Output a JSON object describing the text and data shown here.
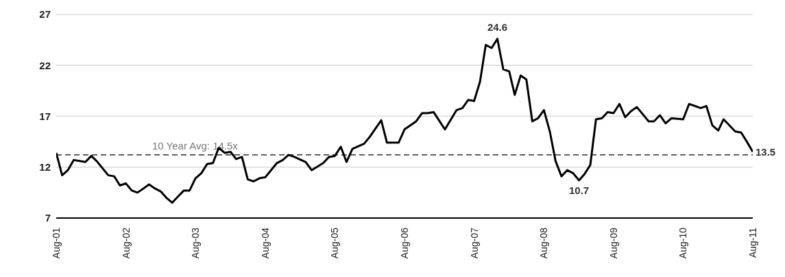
{
  "chart_data": {
    "type": "line",
    "x": [
      "2001-08",
      "2001-09",
      "2001-10",
      "2001-11",
      "2001-12",
      "2002-01",
      "2002-02",
      "2002-03",
      "2002-05",
      "2002-06",
      "2002-07",
      "2002-08",
      "2002-09",
      "2002-10",
      "2002-11",
      "2002-12",
      "2003-01",
      "2003-02",
      "2003-03",
      "2003-04",
      "2003-05",
      "2003-06",
      "2003-07",
      "2003-08",
      "2003-09",
      "2003-10",
      "2003-11",
      "2003-12",
      "2004-01",
      "2004-02",
      "2004-03",
      "2004-04",
      "2004-05",
      "2004-06",
      "2004-07",
      "2004-08",
      "2004-10",
      "2004-11",
      "2004-12",
      "2005-01",
      "2005-03",
      "2005-04",
      "2005-06",
      "2005-07",
      "2005-08",
      "2005-09",
      "2005-10",
      "2005-11",
      "2006-01",
      "2006-02",
      "2006-04",
      "2006-05",
      "2006-07",
      "2006-08",
      "2006-10",
      "2006-11",
      "2006-12",
      "2007-01",
      "2007-03",
      "2007-05",
      "2007-06",
      "2007-07",
      "2007-08",
      "2007-09",
      "2007-10",
      "2007-11",
      "2007-12",
      "2008-01",
      "2008-02",
      "2008-03",
      "2008-04",
      "2008-05",
      "2008-06",
      "2008-07",
      "2008-08",
      "2008-09",
      "2008-10",
      "2008-11",
      "2008-12",
      "2009-01",
      "2009-02",
      "2009-03",
      "2009-04",
      "2009-05",
      "2009-06",
      "2009-07",
      "2009-08",
      "2009-09",
      "2009-10",
      "2009-11",
      "2009-12",
      "2010-02",
      "2010-03",
      "2010-04",
      "2010-05",
      "2010-06",
      "2010-08",
      "2010-09",
      "2010-11",
      "2010-12",
      "2011-01",
      "2011-02",
      "2011-03",
      "2011-05",
      "2011-06",
      "2011-07",
      "2011-08"
    ],
    "series": [
      {
        "color": "#000000",
        "values": [
          13.4,
          11.2,
          11.7,
          12.7,
          12.6,
          12.5,
          13.1,
          12.6,
          11.2,
          11.1,
          10.2,
          10.4,
          9.7,
          9.5,
          9.9,
          10.3,
          9.9,
          9.6,
          9.0,
          8.5,
          9.1,
          9.7,
          9.7,
          10.9,
          11.4,
          12.3,
          12.4,
          13.9,
          13.4,
          13.5,
          12.8,
          13.0,
          10.8,
          10.6,
          10.9,
          11.0,
          12.4,
          12.7,
          13.2,
          13.0,
          12.5,
          11.7,
          12.4,
          13.0,
          13.1,
          14.0,
          12.5,
          13.8,
          14.3,
          15.0,
          16.6,
          14.4,
          14.4,
          15.7,
          16.5,
          17.3,
          17.3,
          17.4,
          15.7,
          17.6,
          17.8,
          18.6,
          18.5,
          20.4,
          24.0,
          23.7,
          24.6,
          21.6,
          21.4,
          19.1,
          21.0,
          20.6,
          16.5,
          16.8,
          17.6,
          15.5,
          12.6,
          11.1,
          11.7,
          11.4,
          10.7,
          11.3,
          12.2,
          16.7,
          16.8,
          17.4,
          17.3,
          18.2,
          16.9,
          17.5,
          17.9,
          16.5,
          16.5,
          17.1,
          16.3,
          16.8,
          16.7,
          18.2,
          17.8,
          18.0,
          16.1,
          15.6,
          16.7,
          15.5,
          15.4,
          14.5,
          13.5
        ],
        "value_labels": [
          null,
          null,
          null,
          null,
          null,
          null,
          null,
          null,
          null,
          null,
          null,
          null,
          null,
          null,
          null,
          null,
          null,
          null,
          null,
          null,
          null,
          null,
          null,
          null,
          null,
          null,
          null,
          null,
          null,
          null,
          null,
          null,
          null,
          null,
          null,
          null,
          null,
          null,
          null,
          null,
          null,
          null,
          null,
          null,
          null,
          null,
          null,
          null,
          null,
          null,
          null,
          null,
          null,
          null,
          null,
          null,
          null,
          null,
          null,
          null,
          null,
          null,
          null,
          null,
          null,
          null,
          "24.6",
          null,
          null,
          null,
          null,
          null,
          null,
          null,
          null,
          null,
          null,
          null,
          null,
          null,
          "10.7",
          null,
          null,
          null,
          null,
          null,
          null,
          null,
          null,
          null,
          null,
          null,
          null,
          null,
          null,
          null,
          null,
          null,
          null,
          null,
          null,
          null,
          null,
          null,
          null,
          null,
          "13.5"
        ]
      }
    ],
    "xlim": [
      "2001-08",
      "2011-08"
    ],
    "xticks": [
      {
        "value": "2001-08",
        "label": "Aug-01"
      },
      {
        "value": "2002-08",
        "label": "Aug-02"
      },
      {
        "value": "2003-08",
        "label": "Aug-03"
      },
      {
        "value": "2004-08",
        "label": "Aug-04"
      },
      {
        "value": "2005-08",
        "label": "Aug-05"
      },
      {
        "value": "2006-08",
        "label": "Aug-06"
      },
      {
        "value": "2007-08",
        "label": "Aug-07"
      },
      {
        "value": "2008-08",
        "label": "Aug-08"
      },
      {
        "value": "2009-08",
        "label": "Aug-09"
      },
      {
        "value": "2010-08",
        "label": "Aug-10"
      },
      {
        "value": "2011-08",
        "label": "Aug-11"
      }
    ],
    "ylim": [
      7,
      27
    ],
    "yticks": [
      7,
      12,
      17,
      22,
      27
    ],
    "ref_lines": [
      {
        "axis": "y",
        "value": 13.2,
        "color": "#000000",
        "line_style": "dashed"
      }
    ],
    "annotations": [
      "10 Year Avg: 14.5x"
    ],
    "grid": "y",
    "legend": false,
    "marker": "none",
    "line_style": "solid"
  }
}
